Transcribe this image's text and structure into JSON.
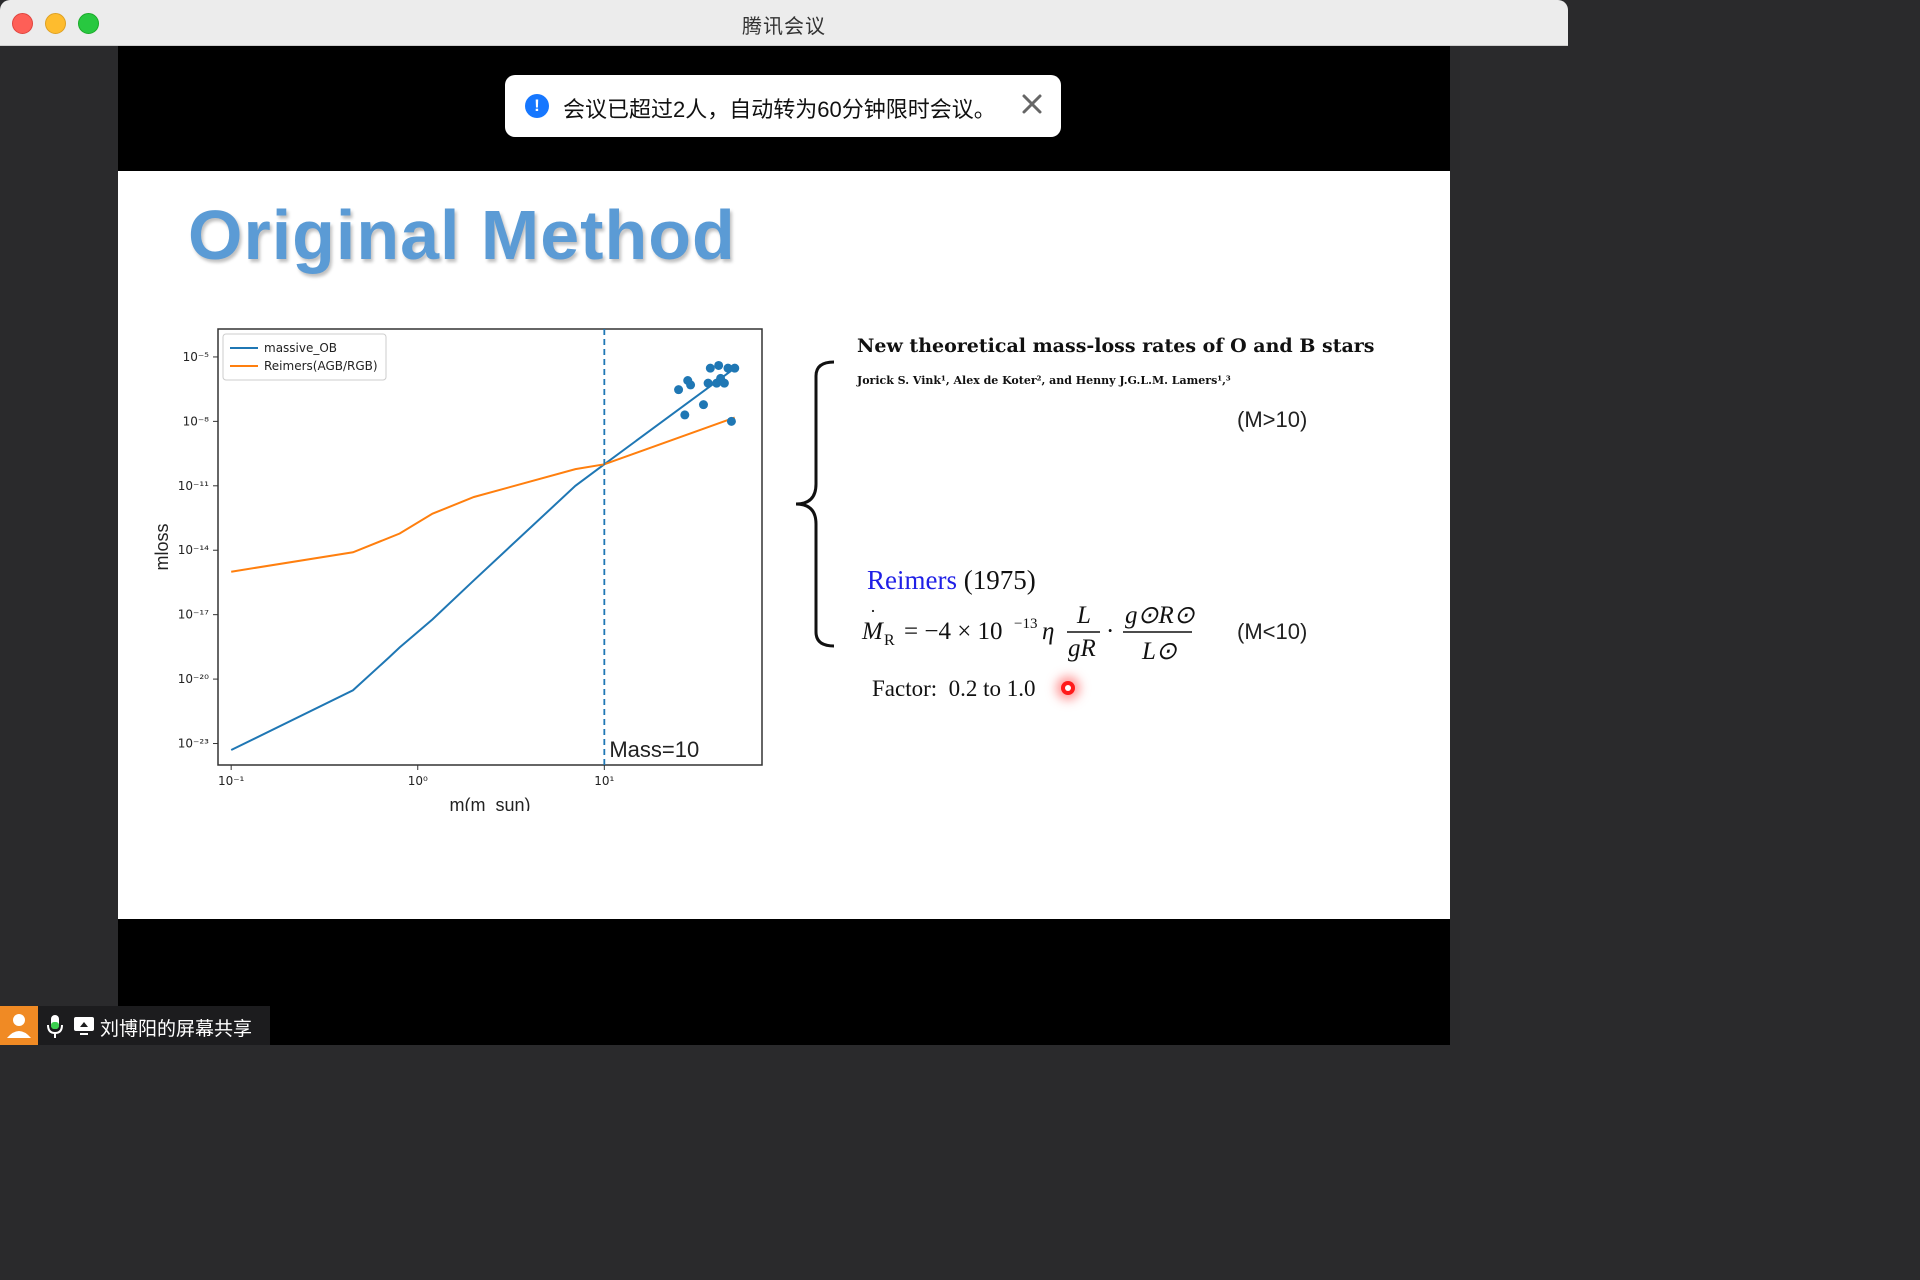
{
  "window": {
    "title": "腾讯会议"
  },
  "toast": {
    "message": "会议已超过2人，自动转为60分钟限时会议。"
  },
  "slide": {
    "title": "Original Method",
    "paper_title": "New theoretical mass-loss rates of O and B stars",
    "authors": "Jorick S. Vink¹, Alex de Koter², and Henny J.G.L.M. Lamers¹,³",
    "cond_high": "(M>10)",
    "cond_low": "(M<10)",
    "reimers_name": "Reimers",
    "reimers_year": "(1975)",
    "factor_label": "Factor:",
    "factor_value": "0.2 to 1.0"
  },
  "chart_data": {
    "type": "line",
    "xlabel": "m(m_sun)",
    "ylabel": "mloss",
    "xscale": "log",
    "yscale": "log",
    "xlim": [
      0.085,
      70
    ],
    "ylim": [
      1e-24,
      0.0002
    ],
    "x_ticks": [
      "10⁻¹",
      "10⁰",
      "10¹"
    ],
    "y_ticks": [
      "10⁻⁵",
      "10⁻⁸",
      "10⁻¹¹",
      "10⁻¹⁴",
      "10⁻¹⁷",
      "10⁻²⁰",
      "10⁻²³"
    ],
    "legend_position": "top-left",
    "annotation": "Mass=10",
    "vline_x": 10,
    "series": [
      {
        "name": "massive_OB",
        "color": "#1f77b4",
        "x": [
          0.1,
          0.45,
          0.7,
          0.8,
          1.2,
          2.0,
          7,
          10,
          50
        ],
        "y": [
          5e-24,
          3e-21,
          1e-19,
          3e-19,
          6e-18,
          4e-16,
          1e-11,
          1e-10,
          3e-06
        ]
      },
      {
        "name": "Reimers(AGB/RGB)",
        "color": "#ff7f0e",
        "x": [
          0.1,
          0.45,
          0.8,
          1.2,
          2,
          7,
          10,
          50
        ],
        "y": [
          1e-15,
          8e-15,
          6e-14,
          5e-13,
          3e-12,
          6e-11,
          1e-10,
          1.5e-08
        ]
      }
    ],
    "scatter": {
      "color": "#1f77b4",
      "x": [
        25,
        28,
        29,
        34,
        36,
        37,
        40,
        41,
        42,
        44,
        46,
        48,
        50,
        27
      ],
      "y": [
        3e-07,
        8e-07,
        5e-07,
        6e-08,
        6e-07,
        3e-06,
        6e-07,
        4e-06,
        1e-06,
        6e-07,
        3e-06,
        1e-08,
        3e-06,
        2e-08
      ]
    }
  },
  "bottom": {
    "share_label": "刘博阳的屏幕共享"
  },
  "icons": {
    "info": "info-icon",
    "close": "close-icon",
    "mic": "mic-icon",
    "screen": "screen-share-icon",
    "user": "user-icon"
  }
}
